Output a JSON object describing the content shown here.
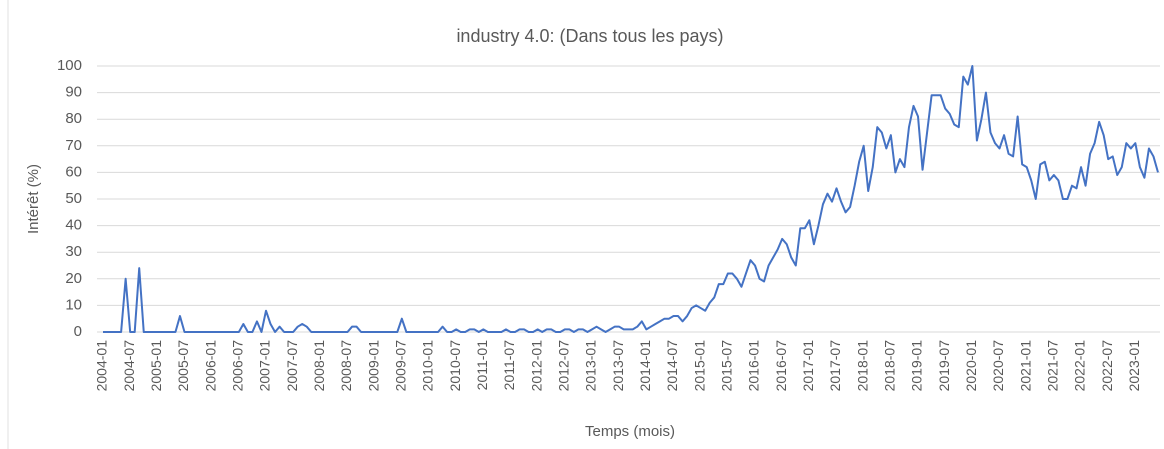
{
  "chart_data": {
    "type": "line",
    "title": "industry 4.0: (Dans tous les pays)",
    "xlabel": "Temps (mois)",
    "ylabel": "Intérêt (%)",
    "categories": [
      "2004-01",
      null,
      null,
      null,
      null,
      null,
      "2004-07",
      null,
      null,
      null,
      null,
      null,
      "2005-01",
      null,
      null,
      null,
      null,
      null,
      "2005-07",
      null,
      null,
      null,
      null,
      null,
      "2006-01",
      null,
      null,
      null,
      null,
      null,
      "2006-07",
      null,
      null,
      null,
      null,
      null,
      "2007-01",
      null,
      null,
      null,
      null,
      null,
      "2007-07",
      null,
      null,
      null,
      null,
      null,
      "2008-01",
      null,
      null,
      null,
      null,
      null,
      "2008-07",
      null,
      null,
      null,
      null,
      null,
      "2009-01",
      null,
      null,
      null,
      null,
      null,
      "2009-07",
      null,
      null,
      null,
      null,
      null,
      "2010-01",
      null,
      null,
      null,
      null,
      null,
      "2010-07",
      null,
      null,
      null,
      null,
      null,
      "2011-01",
      null,
      null,
      null,
      null,
      null,
      "2011-07",
      null,
      null,
      null,
      null,
      null,
      "2012-01",
      null,
      null,
      null,
      null,
      null,
      "2012-07",
      null,
      null,
      null,
      null,
      null,
      "2013-01",
      null,
      null,
      null,
      null,
      null,
      "2013-07",
      null,
      null,
      null,
      null,
      null,
      "2014-01",
      null,
      null,
      null,
      null,
      null,
      "2014-07",
      null,
      null,
      null,
      null,
      null,
      "2015-01",
      null,
      null,
      null,
      null,
      null,
      "2015-07",
      null,
      null,
      null,
      null,
      null,
      "2016-01",
      null,
      null,
      null,
      null,
      null,
      "2016-07",
      null,
      null,
      null,
      null,
      null,
      "2017-01",
      null,
      null,
      null,
      null,
      null,
      "2017-07",
      null,
      null,
      null,
      null,
      null,
      "2018-01",
      null,
      null,
      null,
      null,
      null,
      "2018-07",
      null,
      null,
      null,
      null,
      null,
      "2019-01",
      null,
      null,
      null,
      null,
      null,
      "2019-07",
      null,
      null,
      null,
      null,
      null,
      "2020-01",
      null,
      null,
      null,
      null,
      null,
      "2020-07",
      null,
      null,
      null,
      null,
      null,
      "2021-01",
      null,
      null,
      null,
      null,
      null,
      "2021-07",
      null,
      null,
      null,
      null,
      null,
      "2022-01",
      null,
      null,
      null,
      null,
      null,
      "2022-07",
      null,
      null,
      null,
      null,
      null,
      "2023-01",
      null,
      null,
      null,
      null,
      null
    ],
    "series": [
      {
        "name": "industry 4.0",
        "color": "#4472c4",
        "values": [
          0,
          0,
          0,
          0,
          0,
          20,
          0,
          0,
          24,
          0,
          0,
          0,
          0,
          0,
          0,
          0,
          0,
          6,
          0,
          0,
          0,
          0,
          0,
          0,
          0,
          0,
          0,
          0,
          0,
          0,
          0,
          3,
          0,
          0,
          4,
          0,
          8,
          3,
          0,
          2,
          0,
          0,
          0,
          2,
          3,
          2,
          0,
          0,
          0,
          0,
          0,
          0,
          0,
          0,
          0,
          2,
          2,
          0,
          0,
          0,
          0,
          0,
          0,
          0,
          0,
          0,
          5,
          0,
          0,
          0,
          0,
          0,
          0,
          0,
          0,
          2,
          0,
          0,
          1,
          0,
          0,
          1,
          1,
          0,
          1,
          0,
          0,
          0,
          0,
          1,
          0,
          0,
          1,
          1,
          0,
          0,
          1,
          0,
          1,
          1,
          0,
          0,
          1,
          1,
          0,
          1,
          1,
          0,
          1,
          2,
          1,
          0,
          1,
          2,
          2,
          1,
          1,
          1,
          2,
          4,
          1,
          2,
          3,
          4,
          5,
          5,
          6,
          6,
          4,
          6,
          9,
          10,
          9,
          8,
          11,
          13,
          18,
          18,
          22,
          22,
          20,
          17,
          22,
          27,
          25,
          20,
          19,
          25,
          28,
          31,
          35,
          33,
          28,
          25,
          39,
          39,
          42,
          33,
          40,
          48,
          52,
          49,
          54,
          49,
          45,
          47,
          55,
          64,
          70,
          53,
          62,
          77,
          75,
          69,
          74,
          60,
          65,
          62,
          77,
          85,
          81,
          61,
          75,
          89,
          89,
          89,
          84,
          82,
          78,
          77,
          96,
          93,
          100,
          72,
          80,
          90,
          75,
          71,
          69,
          74,
          67,
          66,
          81,
          63,
          62,
          57,
          50,
          63,
          64,
          57,
          59,
          57,
          50,
          50,
          55,
          54,
          62,
          55,
          67,
          71,
          79,
          74,
          65,
          66,
          59,
          62,
          71,
          69,
          71,
          62,
          58,
          69,
          66,
          60
        ]
      }
    ],
    "ylim": [
      0,
      100
    ],
    "yticks": [
      0,
      10,
      20,
      30,
      40,
      50,
      60,
      70,
      80,
      90,
      100
    ],
    "grid": true
  }
}
